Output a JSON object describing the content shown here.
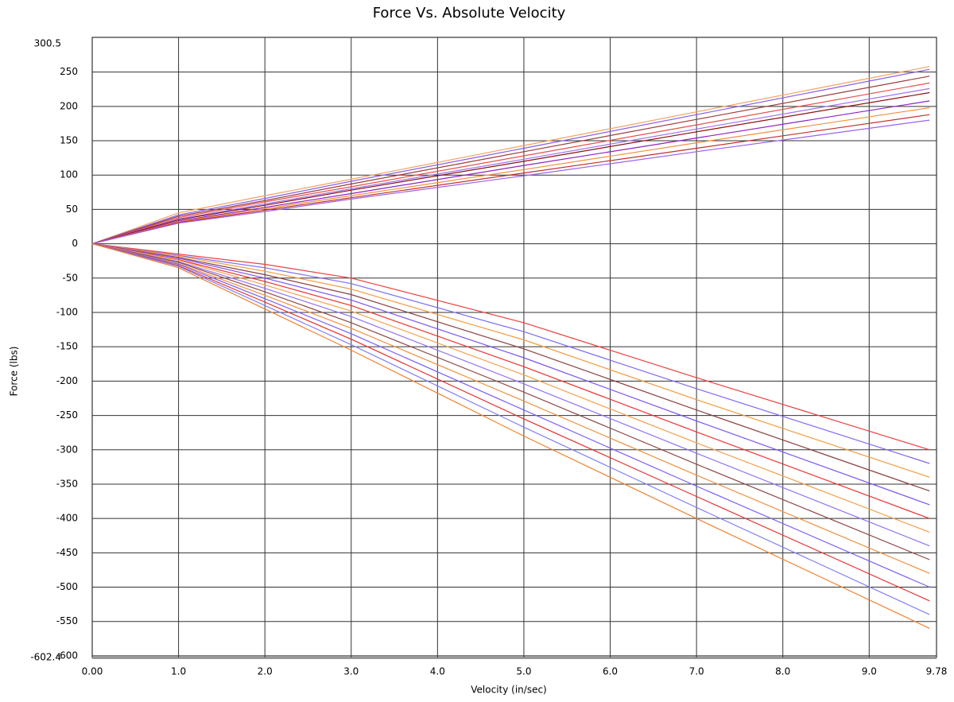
{
  "chart_data": {
    "type": "line",
    "title": "Force Vs. Absolute Velocity",
    "x_label": "Velocity (in/sec)",
    "y_label": "Force (lbs)",
    "x": [
      0,
      1,
      2,
      3,
      5,
      7,
      9.7
    ],
    "xlim": [
      0,
      9.78
    ],
    "ylim": [
      -602.4,
      300.5
    ],
    "grid": true,
    "xticks": [
      {
        "value": 0,
        "label": "0.00"
      },
      {
        "value": 1,
        "label": "1.0"
      },
      {
        "value": 2,
        "label": "2.0"
      },
      {
        "value": 3,
        "label": "3.0"
      },
      {
        "value": 4,
        "label": "4.0"
      },
      {
        "value": 5,
        "label": "5.0"
      },
      {
        "value": 6,
        "label": "6.0"
      },
      {
        "value": 7,
        "label": "7.0"
      },
      {
        "value": 8,
        "label": "8.0"
      },
      {
        "value": 9,
        "label": "9.0"
      },
      9.78
    ],
    "yticks": [
      -602.4,
      -600,
      -550,
      -500,
      -450,
      -400,
      -350,
      -300,
      -250,
      -200,
      -150,
      -100,
      -50,
      0,
      50,
      100,
      150,
      200,
      250,
      300.5
    ],
    "series": [
      {
        "color": "#f5a25a",
        "values": [
          0,
          45,
          70,
          94,
          143,
          192,
          258
        ]
      },
      {
        "color": "#8a5cf0",
        "values": [
          0,
          42,
          66,
          91,
          139,
          188,
          254
        ]
      },
      {
        "color": "#9b3b3b",
        "values": [
          0,
          40,
          63,
          87,
          134,
          181,
          244
        ]
      },
      {
        "color": "#e8504a",
        "values": [
          0,
          38,
          61,
          83,
          128,
          173,
          234
        ]
      },
      {
        "color": "#a070f0",
        "values": [
          0,
          36,
          58,
          80,
          123,
          167,
          226
        ]
      },
      {
        "color": "#8b1010",
        "values": [
          0,
          35,
          56,
          78,
          120,
          163,
          220
        ]
      },
      {
        "color": "#9020c0",
        "values": [
          0,
          33,
          53,
          73,
          114,
          154,
          208
        ]
      },
      {
        "color": "#f09040",
        "values": [
          0,
          32,
          51,
          70,
          108,
          147,
          198
        ]
      },
      {
        "color": "#c03030",
        "values": [
          0,
          31,
          49,
          67,
          103,
          139,
          188
        ]
      },
      {
        "color": "#9a60f0",
        "values": [
          0,
          30,
          47,
          65,
          99,
          134,
          180
        ]
      },
      {
        "color": "#f04040",
        "values": [
          0,
          -15,
          -30,
          -50,
          -115,
          -195,
          -300
        ]
      },
      {
        "color": "#7b6cf5",
        "values": [
          0,
          -17,
          -35,
          -58,
          -128,
          -211,
          -320
        ]
      },
      {
        "color": "#f59a40",
        "values": [
          0,
          -18,
          -40,
          -66,
          -140,
          -227,
          -340
        ]
      },
      {
        "color": "#8b4040",
        "values": [
          0,
          -20,
          -45,
          -74,
          -153,
          -242,
          -360
        ]
      },
      {
        "color": "#7a55f5",
        "values": [
          0,
          -21,
          -50,
          -82,
          -166,
          -258,
          -380
        ]
      },
      {
        "color": "#f03030",
        "values": [
          0,
          -23,
          -55,
          -90,
          -179,
          -274,
          -400
        ]
      },
      {
        "color": "#f5a050",
        "values": [
          0,
          -24,
          -60,
          -98,
          -191,
          -290,
          -420
        ]
      },
      {
        "color": "#9070f5",
        "values": [
          0,
          -26,
          -65,
          -106,
          -204,
          -305,
          -440
        ]
      },
      {
        "color": "#904848",
        "values": [
          0,
          -27,
          -70,
          -115,
          -216,
          -321,
          -460
        ]
      },
      {
        "color": "#f09040",
        "values": [
          0,
          -29,
          -75,
          -123,
          -229,
          -337,
          -480
        ]
      },
      {
        "color": "#7a60f8",
        "values": [
          0,
          -30,
          -80,
          -131,
          -242,
          -353,
          -500
        ]
      },
      {
        "color": "#e83030",
        "values": [
          0,
          -32,
          -85,
          -139,
          -255,
          -368,
          -520
        ]
      },
      {
        "color": "#8080f5",
        "values": [
          0,
          -33,
          -90,
          -147,
          -267,
          -384,
          -540
        ]
      },
      {
        "color": "#f08030",
        "values": [
          0,
          -35,
          -95,
          -155,
          -280,
          -400,
          -560
        ]
      }
    ]
  }
}
